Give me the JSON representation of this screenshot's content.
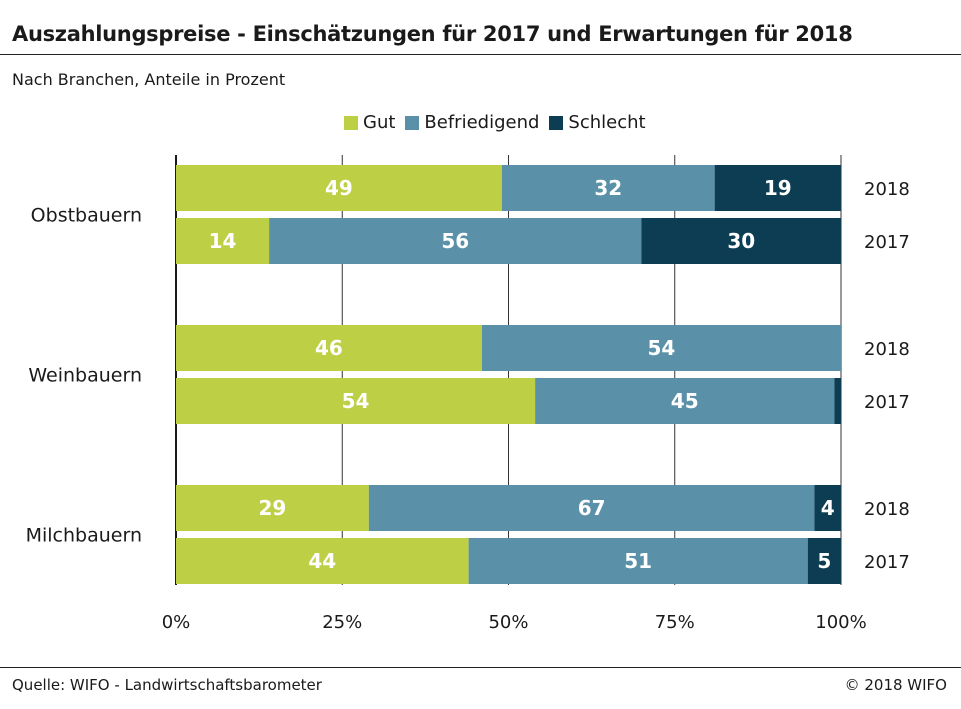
{
  "header": {
    "title": "Auszahlungspreise - Einschätzungen für 2017 und Erwartungen für 2018",
    "subtitle": "Nach Branchen, Anteile in Prozent"
  },
  "footer": {
    "source": "Quelle: WIFO - Landwirtschaftsbarometer",
    "copyright": "© 2018 WIFO"
  },
  "colors": {
    "Gut": "#bdcf44",
    "Befriedigend": "#5b91a8",
    "Schlecht": "#0d3d52",
    "grid": "#333333"
  },
  "chart_data": {
    "type": "bar",
    "orientation": "horizontal",
    "stacked": true,
    "series_names": [
      "Gut",
      "Befriedigend",
      "Schlecht"
    ],
    "groups": [
      {
        "name": "Obstbauern",
        "bars": [
          {
            "year": "2018",
            "values": [
              49,
              32,
              19
            ],
            "labels": [
              "49",
              "32",
              "19"
            ]
          },
          {
            "year": "2017",
            "values": [
              14,
              56,
              30
            ],
            "labels": [
              "14",
              "56",
              "30"
            ]
          }
        ]
      },
      {
        "name": "Weinbauern",
        "bars": [
          {
            "year": "2018",
            "values": [
              46,
              54,
              0
            ],
            "labels": [
              "46",
              "54",
              ""
            ]
          },
          {
            "year": "2017",
            "values": [
              54,
              45,
              1
            ],
            "labels": [
              "54",
              "45",
              ""
            ]
          }
        ]
      },
      {
        "name": "Milchbauern",
        "bars": [
          {
            "year": "2018",
            "values": [
              29,
              67,
              4
            ],
            "labels": [
              "29",
              "67",
              "4"
            ]
          },
          {
            "year": "2017",
            "values": [
              44,
              51,
              5
            ],
            "labels": [
              "44",
              "51",
              "5"
            ]
          }
        ]
      }
    ],
    "x_ticks": [
      "0%",
      "25%",
      "50%",
      "75%",
      "100%"
    ],
    "xlim": [
      0,
      100
    ],
    "grid": true,
    "legend_position": "top-center"
  }
}
